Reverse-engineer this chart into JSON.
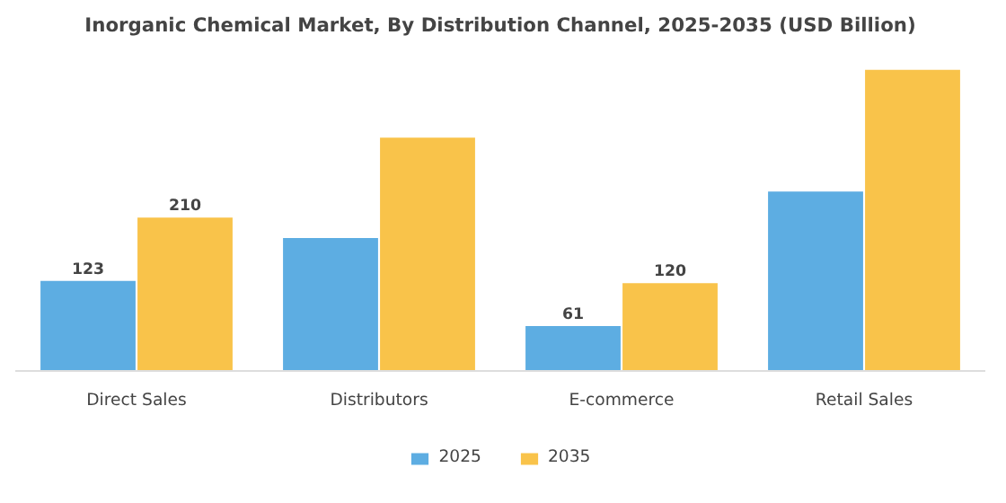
{
  "chart_data": {
    "type": "bar",
    "title": "Inorganic Chemical Market, By Distribution Channel, 2025-2035 (USD Billion)",
    "categories": [
      "Direct Sales",
      "Distributors",
      "E-commerce",
      "Retail Sales"
    ],
    "series": [
      {
        "name": "2025",
        "color": "#5dade2",
        "values": [
          123,
          182,
          61,
          246
        ],
        "value_labels": [
          "123",
          null,
          "61",
          null
        ]
      },
      {
        "name": "2035",
        "color": "#f9c34a",
        "values": [
          210,
          320,
          120,
          413
        ],
        "value_labels": [
          "210",
          null,
          "120",
          null
        ]
      }
    ],
    "legend": "bottom",
    "grid": false
  }
}
